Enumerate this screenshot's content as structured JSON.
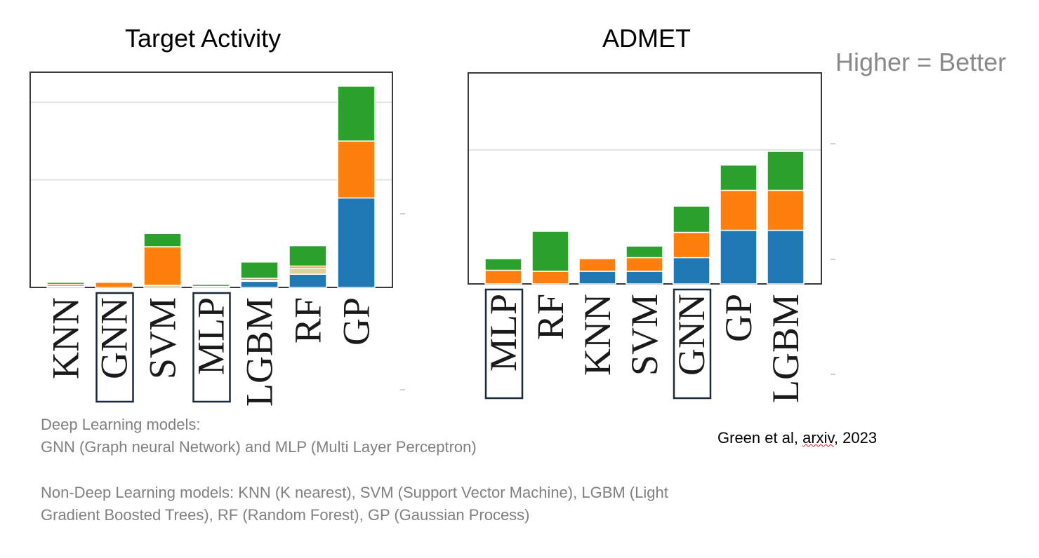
{
  "note": "Higher = Better",
  "captions": {
    "deep_title": "Deep Learning models:",
    "deep_list": "GNN (Graph neural Network) and MLP (Multi Layer Perceptron)",
    "nondeep": "Non-Deep Learning models: KNN (K nearest), SVM (Support Vector Machine), LGBM (Light Gradient Boosted Trees), RF (Random Forest), GP (Gaussian Process)"
  },
  "citation": {
    "before": "Green et al, ",
    "flagged": "arxiv",
    "after": ", 2023"
  },
  "colors": {
    "blue": "#1f77b4",
    "orange": "#ff7f0e",
    "green": "#2ca02c",
    "tan": "#dbd49a",
    "highlight_box": "#1b2a3a"
  },
  "chart_data": [
    {
      "type": "bar",
      "stacked": true,
      "title": "Target Activity",
      "categories": [
        "KNN",
        "GNN",
        "SVM",
        "MLP",
        "LGBM",
        "RF",
        "GP"
      ],
      "highlighted": [
        "GNN",
        "MLP"
      ],
      "ylim": [
        0,
        100
      ],
      "grid": true,
      "series": [
        {
          "color": "blue",
          "values": [
            0.5,
            0,
            0,
            0.5,
            3,
            6.5,
            44
          ]
        },
        {
          "color": "tan",
          "values": [
            0,
            0,
            1,
            0,
            0.5,
            3,
            0
          ]
        },
        {
          "color": "orange",
          "values": [
            1,
            2.5,
            19,
            0,
            1,
            1,
            28
          ]
        },
        {
          "color": "green",
          "values": [
            1,
            0.5,
            6.5,
            1,
            8,
            10,
            27
          ]
        }
      ]
    },
    {
      "type": "bar",
      "stacked": true,
      "title": "ADMET",
      "categories": [
        "MLP",
        "RF",
        "KNN",
        "SVM",
        "GNN",
        "GP",
        "LGBM"
      ],
      "highlighted": [
        "MLP",
        "GNN"
      ],
      "ylim": [
        0,
        100
      ],
      "grid": true,
      "series": [
        {
          "color": "blue",
          "values": [
            0,
            0,
            6,
            6,
            12.5,
            25.5,
            25.5
          ]
        },
        {
          "color": "orange",
          "values": [
            6.5,
            6,
            6,
            6.5,
            12,
            19,
            19
          ]
        },
        {
          "color": "green",
          "values": [
            5.5,
            19,
            0,
            5.5,
            12.5,
            12,
            18.5
          ]
        }
      ]
    }
  ]
}
